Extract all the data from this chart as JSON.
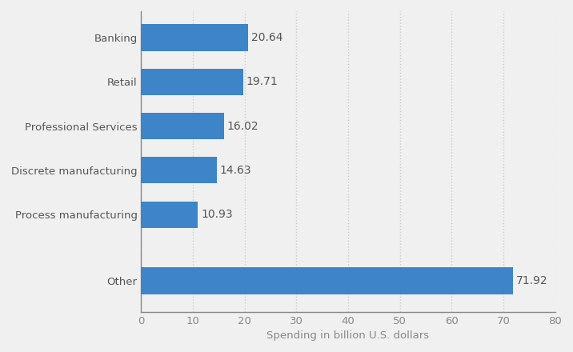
{
  "categories": [
    "Banking",
    "Retail",
    "Professional Services",
    "Discrete manufacturing",
    "Process manufacturing",
    "Other"
  ],
  "values": [
    20.64,
    19.71,
    16.02,
    14.63,
    10.93,
    71.92
  ],
  "y_positions": [
    6.0,
    5.0,
    4.0,
    3.0,
    2.0,
    0.5
  ],
  "bar_color": "#3d85c8",
  "xlabel": "Spending in billion U.S. dollars",
  "xlim": [
    0,
    80
  ],
  "xticks": [
    0,
    10,
    20,
    30,
    40,
    50,
    60,
    70,
    80
  ],
  "background_color": "#f0f0f0",
  "plot_bg_color": "#f0f0f0",
  "grid_color": "#cccccc",
  "bar_height": 0.6,
  "value_fontsize": 10,
  "label_fontsize": 9.5,
  "xlabel_fontsize": 9.5,
  "tick_fontsize": 9.5,
  "label_color": "#555555",
  "tick_color": "#888888"
}
